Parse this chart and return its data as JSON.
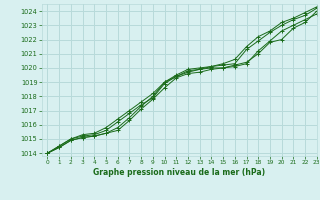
{
  "title": "Graphe pression niveau de la mer (hPa)",
  "xlim": [
    -0.5,
    23
  ],
  "ylim": [
    1013.8,
    1024.5
  ],
  "yticks": [
    1014,
    1015,
    1016,
    1017,
    1018,
    1019,
    1020,
    1021,
    1022,
    1023,
    1024
  ],
  "xticks": [
    0,
    1,
    2,
    3,
    4,
    5,
    6,
    7,
    8,
    9,
    10,
    11,
    12,
    13,
    14,
    15,
    16,
    17,
    18,
    19,
    20,
    21,
    22,
    23
  ],
  "bg_color": "#d8f0f0",
  "grid_color": "#b8dada",
  "line_color": "#1a6b1a",
  "title_color": "#1a6b1a",
  "tick_color": "#1a6b1a",
  "series": [
    [
      1014.0,
      1014.4,
      1014.9,
      1015.1,
      1015.2,
      1015.4,
      1015.6,
      1016.3,
      1017.1,
      1017.8,
      1018.6,
      1019.3,
      1019.6,
      1019.7,
      1019.9,
      1020.0,
      1020.1,
      1020.3,
      1021.2,
      1021.9,
      1022.6,
      1023.0,
      1023.4,
      1023.8
    ],
    [
      1014.0,
      1014.4,
      1014.9,
      1015.1,
      1015.2,
      1015.4,
      1015.8,
      1016.5,
      1017.3,
      1018.0,
      1019.0,
      1019.4,
      1019.7,
      1019.9,
      1020.0,
      1020.0,
      1020.2,
      1020.4,
      1021.0,
      1021.8,
      1022.0,
      1022.8,
      1023.2,
      1024.0
    ],
    [
      1014.0,
      1014.5,
      1015.0,
      1015.2,
      1015.3,
      1015.6,
      1016.2,
      1016.8,
      1017.4,
      1017.9,
      1018.9,
      1019.4,
      1019.8,
      1019.9,
      1020.1,
      1020.2,
      1020.3,
      1021.3,
      1021.9,
      1022.5,
      1023.0,
      1023.4,
      1023.7,
      1024.2
    ],
    [
      1014.0,
      1014.5,
      1015.0,
      1015.3,
      1015.4,
      1015.8,
      1016.4,
      1017.0,
      1017.6,
      1018.2,
      1019.0,
      1019.5,
      1019.9,
      1020.0,
      1020.1,
      1020.3,
      1020.6,
      1021.5,
      1022.2,
      1022.6,
      1023.2,
      1023.5,
      1023.9,
      1024.3
    ]
  ]
}
